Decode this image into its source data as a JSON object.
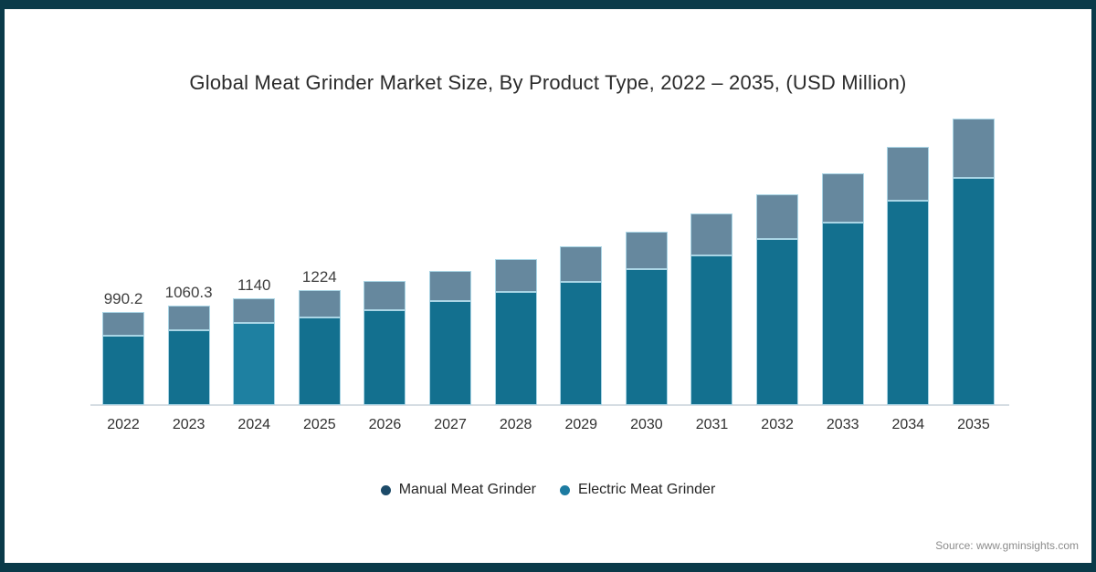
{
  "frame": {
    "border_color": "#0a3a49",
    "background": "#ffffff"
  },
  "title": "Global Meat Grinder Market Size, By Product Type, 2022 – 2035, (USD Million)",
  "source": "Source: www.gminsights.com",
  "legend": {
    "items": [
      {
        "label": "Manual Meat Grinder",
        "dot_color": "#1c4a68"
      },
      {
        "label": "Electric Meat Grinder",
        "dot_color": "#1d7ba1"
      }
    ]
  },
  "chart_data": {
    "type": "bar",
    "stacked": true,
    "title": "Global Meat Grinder Market Size, By Product Type, 2022 – 2035, (USD Million)",
    "unit": "USD Million",
    "categories": [
      "2022",
      "2023",
      "2024",
      "2025",
      "2026",
      "2027",
      "2028",
      "2029",
      "2030",
      "2031",
      "2032",
      "2033",
      "2034",
      "2035"
    ],
    "series": [
      {
        "name": "Electric Meat Grinder",
        "stack_position": "bottom",
        "color": "#13708f",
        "values": [
          738,
          798,
          872,
          932,
          1010,
          1107,
          1204,
          1311,
          1447,
          1593,
          1767,
          1942,
          2175,
          2418
        ]
      },
      {
        "name": "Manual Meat Grinder",
        "stack_position": "top",
        "color": "#66889e",
        "values": [
          252.2,
          262.3,
          268,
          292,
          311,
          320,
          350,
          379,
          398,
          447,
          476,
          524,
          573,
          631
        ]
      }
    ],
    "totals": [
      990.2,
      1060.3,
      1140,
      1224,
      1321,
      1427,
      1554,
      1690,
      1845,
      2040,
      2243,
      2466,
      2748,
      3049
    ],
    "bar_value_labels": [
      "990.2",
      "1060.3",
      "1140",
      "1224",
      "",
      "",
      "",
      "",
      "",
      "",
      "",
      "",
      "",
      ""
    ],
    "highlighted_category": "2024",
    "highlight_color": "#1e80a1",
    "segment_stroke_color": "#aad5e5",
    "axis_line_color": "#d6dde3",
    "legend_position": "bottom",
    "gridlines": false,
    "y_axis_visible": false
  }
}
